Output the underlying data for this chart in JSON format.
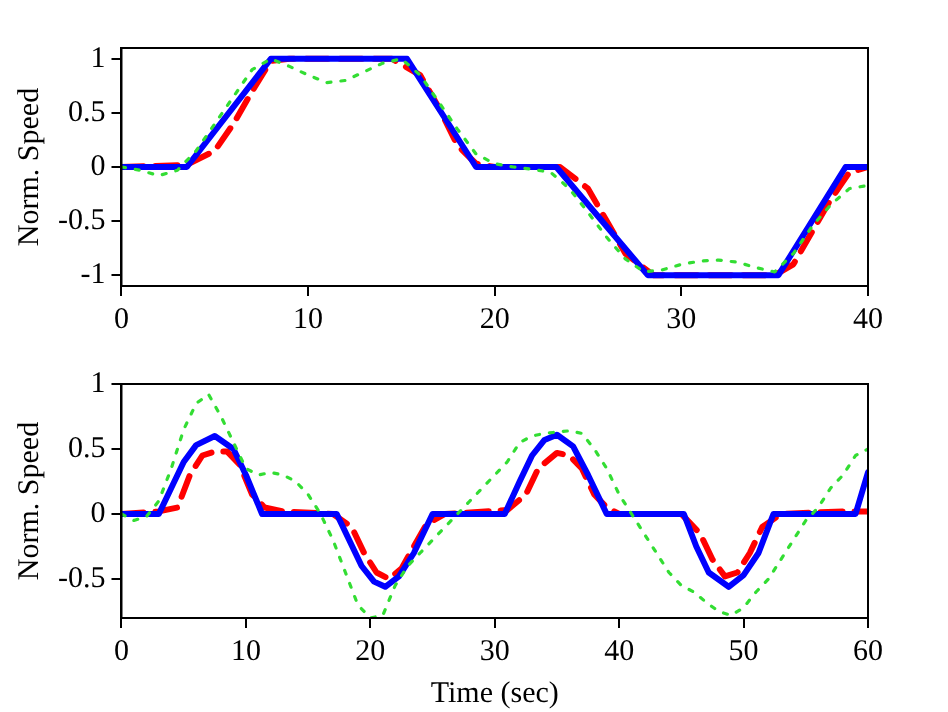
{
  "chart_data": [
    {
      "type": "line",
      "ylabel": "Norm. Speed",
      "xlim": [
        0,
        40
      ],
      "ylim": [
        -1.1,
        1.1
      ],
      "xticks": [
        0,
        10,
        20,
        30,
        40
      ],
      "yticks": [
        -1,
        -0.5,
        0,
        0.5,
        1
      ],
      "series": [
        {
          "color": "#33dd33",
          "line_style": "dotted",
          "x": [
            0,
            1,
            2,
            3,
            4,
            5,
            6,
            7,
            8,
            9,
            10,
            11,
            12,
            13,
            14,
            15,
            16,
            17,
            18,
            19,
            20,
            21,
            22,
            23,
            24,
            25,
            26,
            27,
            28,
            29,
            30,
            31,
            32,
            33,
            34,
            35,
            36,
            37,
            38,
            39,
            40
          ],
          "values": [
            0,
            -0.03,
            -0.08,
            -0.03,
            0.15,
            0.4,
            0.65,
            0.9,
            1.0,
            0.93,
            0.85,
            0.78,
            0.8,
            0.88,
            0.96,
            1.0,
            0.85,
            0.6,
            0.35,
            0.12,
            0.03,
            0,
            -0.02,
            -0.05,
            -0.2,
            -0.42,
            -0.65,
            -0.85,
            -0.97,
            -0.95,
            -0.9,
            -0.87,
            -0.86,
            -0.88,
            -0.93,
            -0.97,
            -0.8,
            -0.55,
            -0.35,
            -0.2,
            -0.17
          ]
        },
        {
          "color": "#0000ff",
          "line_style": "solid",
          "x": [
            0,
            3.5,
            8,
            15.3,
            19,
            23.3,
            28.2,
            35.2,
            38.8,
            40
          ],
          "values": [
            0,
            0,
            1,
            1,
            0,
            0,
            -1,
            -1,
            0,
            0
          ]
        },
        {
          "color": "#ff0000",
          "line_style": "dashed",
          "x": [
            0,
            3.5,
            5,
            6,
            7,
            8,
            9,
            14.5,
            16,
            17,
            18,
            19,
            20,
            23.5,
            25,
            26,
            27,
            28.5,
            35,
            36,
            37,
            38,
            39,
            40
          ],
          "values": [
            0,
            0.02,
            0.15,
            0.4,
            0.7,
            0.98,
            1,
            1,
            0.85,
            0.55,
            0.2,
            0.03,
            0,
            0,
            -0.2,
            -0.5,
            -0.8,
            -1,
            -1,
            -0.9,
            -0.6,
            -0.3,
            -0.05,
            0
          ]
        }
      ]
    },
    {
      "type": "line",
      "xlabel": "Time (sec)",
      "ylabel": "Norm. Speed",
      "xlim": [
        0,
        60
      ],
      "ylim": [
        -0.8,
        1
      ],
      "xticks": [
        0,
        10,
        20,
        30,
        40,
        50,
        60
      ],
      "yticks": [
        -0.5,
        0,
        0.5,
        1
      ],
      "series": [
        {
          "color": "#33dd33",
          "line_style": "dotted",
          "x": [
            0,
            1,
            2,
            3,
            4,
            5,
            6,
            7,
            8,
            9,
            10,
            11,
            12,
            13,
            14,
            15,
            16,
            17,
            18,
            19,
            20,
            21,
            22,
            23,
            24,
            25,
            26,
            27,
            28,
            29,
            30,
            31,
            32,
            33,
            34,
            35,
            36,
            37,
            38,
            39,
            40,
            41,
            42,
            43,
            44,
            45,
            46,
            47,
            48,
            49,
            50,
            51,
            52,
            53,
            54,
            55,
            56,
            57,
            58,
            59,
            60
          ],
          "values": [
            0,
            -0.05,
            -0.02,
            0.1,
            0.35,
            0.65,
            0.85,
            0.92,
            0.75,
            0.55,
            0.35,
            0.3,
            0.32,
            0.3,
            0.25,
            0.15,
            0,
            -0.2,
            -0.45,
            -0.7,
            -0.8,
            -0.78,
            -0.55,
            -0.4,
            -0.3,
            -0.2,
            -0.1,
            0,
            0.1,
            0.2,
            0.3,
            0.4,
            0.55,
            0.6,
            0.62,
            0.63,
            0.64,
            0.62,
            0.5,
            0.35,
            0.15,
            0,
            -0.15,
            -0.3,
            -0.45,
            -0.55,
            -0.6,
            -0.68,
            -0.75,
            -0.78,
            -0.72,
            -0.6,
            -0.5,
            -0.35,
            -0.2,
            -0.05,
            0.05,
            0.2,
            0.3,
            0.45,
            0.5
          ]
        },
        {
          "color": "#0000ff",
          "line_style": "solid",
          "x": [
            0,
            3,
            4,
            5,
            6,
            7.5,
            9,
            10,
            11.3,
            17.3,
            18.3,
            19.3,
            20.3,
            21.2,
            22.3,
            23.5,
            25,
            30.8,
            32,
            33,
            34,
            35,
            36.3,
            37.5,
            39,
            45.2,
            46.2,
            47.2,
            48.8,
            50,
            51.2,
            52.4,
            59,
            60
          ],
          "values": [
            0,
            0,
            0.2,
            0.4,
            0.53,
            0.6,
            0.5,
            0.3,
            0,
            0,
            -0.2,
            -0.4,
            -0.52,
            -0.56,
            -0.48,
            -0.3,
            0,
            0,
            0.25,
            0.45,
            0.57,
            0.61,
            0.52,
            0.3,
            0,
            0,
            -0.25,
            -0.45,
            -0.56,
            -0.47,
            -0.3,
            0,
            0,
            0.32
          ]
        },
        {
          "color": "#ff0000",
          "line_style": "dashed",
          "x": [
            0,
            3,
            4.5,
            5.5,
            6.5,
            7.5,
            8.5,
            9.5,
            10.5,
            11.5,
            13,
            17,
            18.5,
            19.5,
            20.5,
            21.5,
            22.5,
            23.5,
            24.5,
            26,
            31,
            32.5,
            33.5,
            35,
            36,
            37,
            38,
            39,
            40,
            45,
            46.5,
            47.5,
            48.5,
            49.5,
            50.5,
            51.5,
            53,
            58,
            60
          ],
          "values": [
            0,
            0.02,
            0.05,
            0.3,
            0.45,
            0.48,
            0.48,
            0.38,
            0.15,
            0.05,
            0.02,
            0,
            -0.1,
            -0.3,
            -0.45,
            -0.5,
            -0.42,
            -0.25,
            -0.08,
            0,
            0.03,
            0.15,
            0.35,
            0.47,
            0.45,
            0.35,
            0.15,
            0.05,
            0,
            0,
            -0.15,
            -0.35,
            -0.48,
            -0.45,
            -0.3,
            -0.1,
            0,
            0.02,
            0.02
          ]
        }
      ]
    }
  ]
}
